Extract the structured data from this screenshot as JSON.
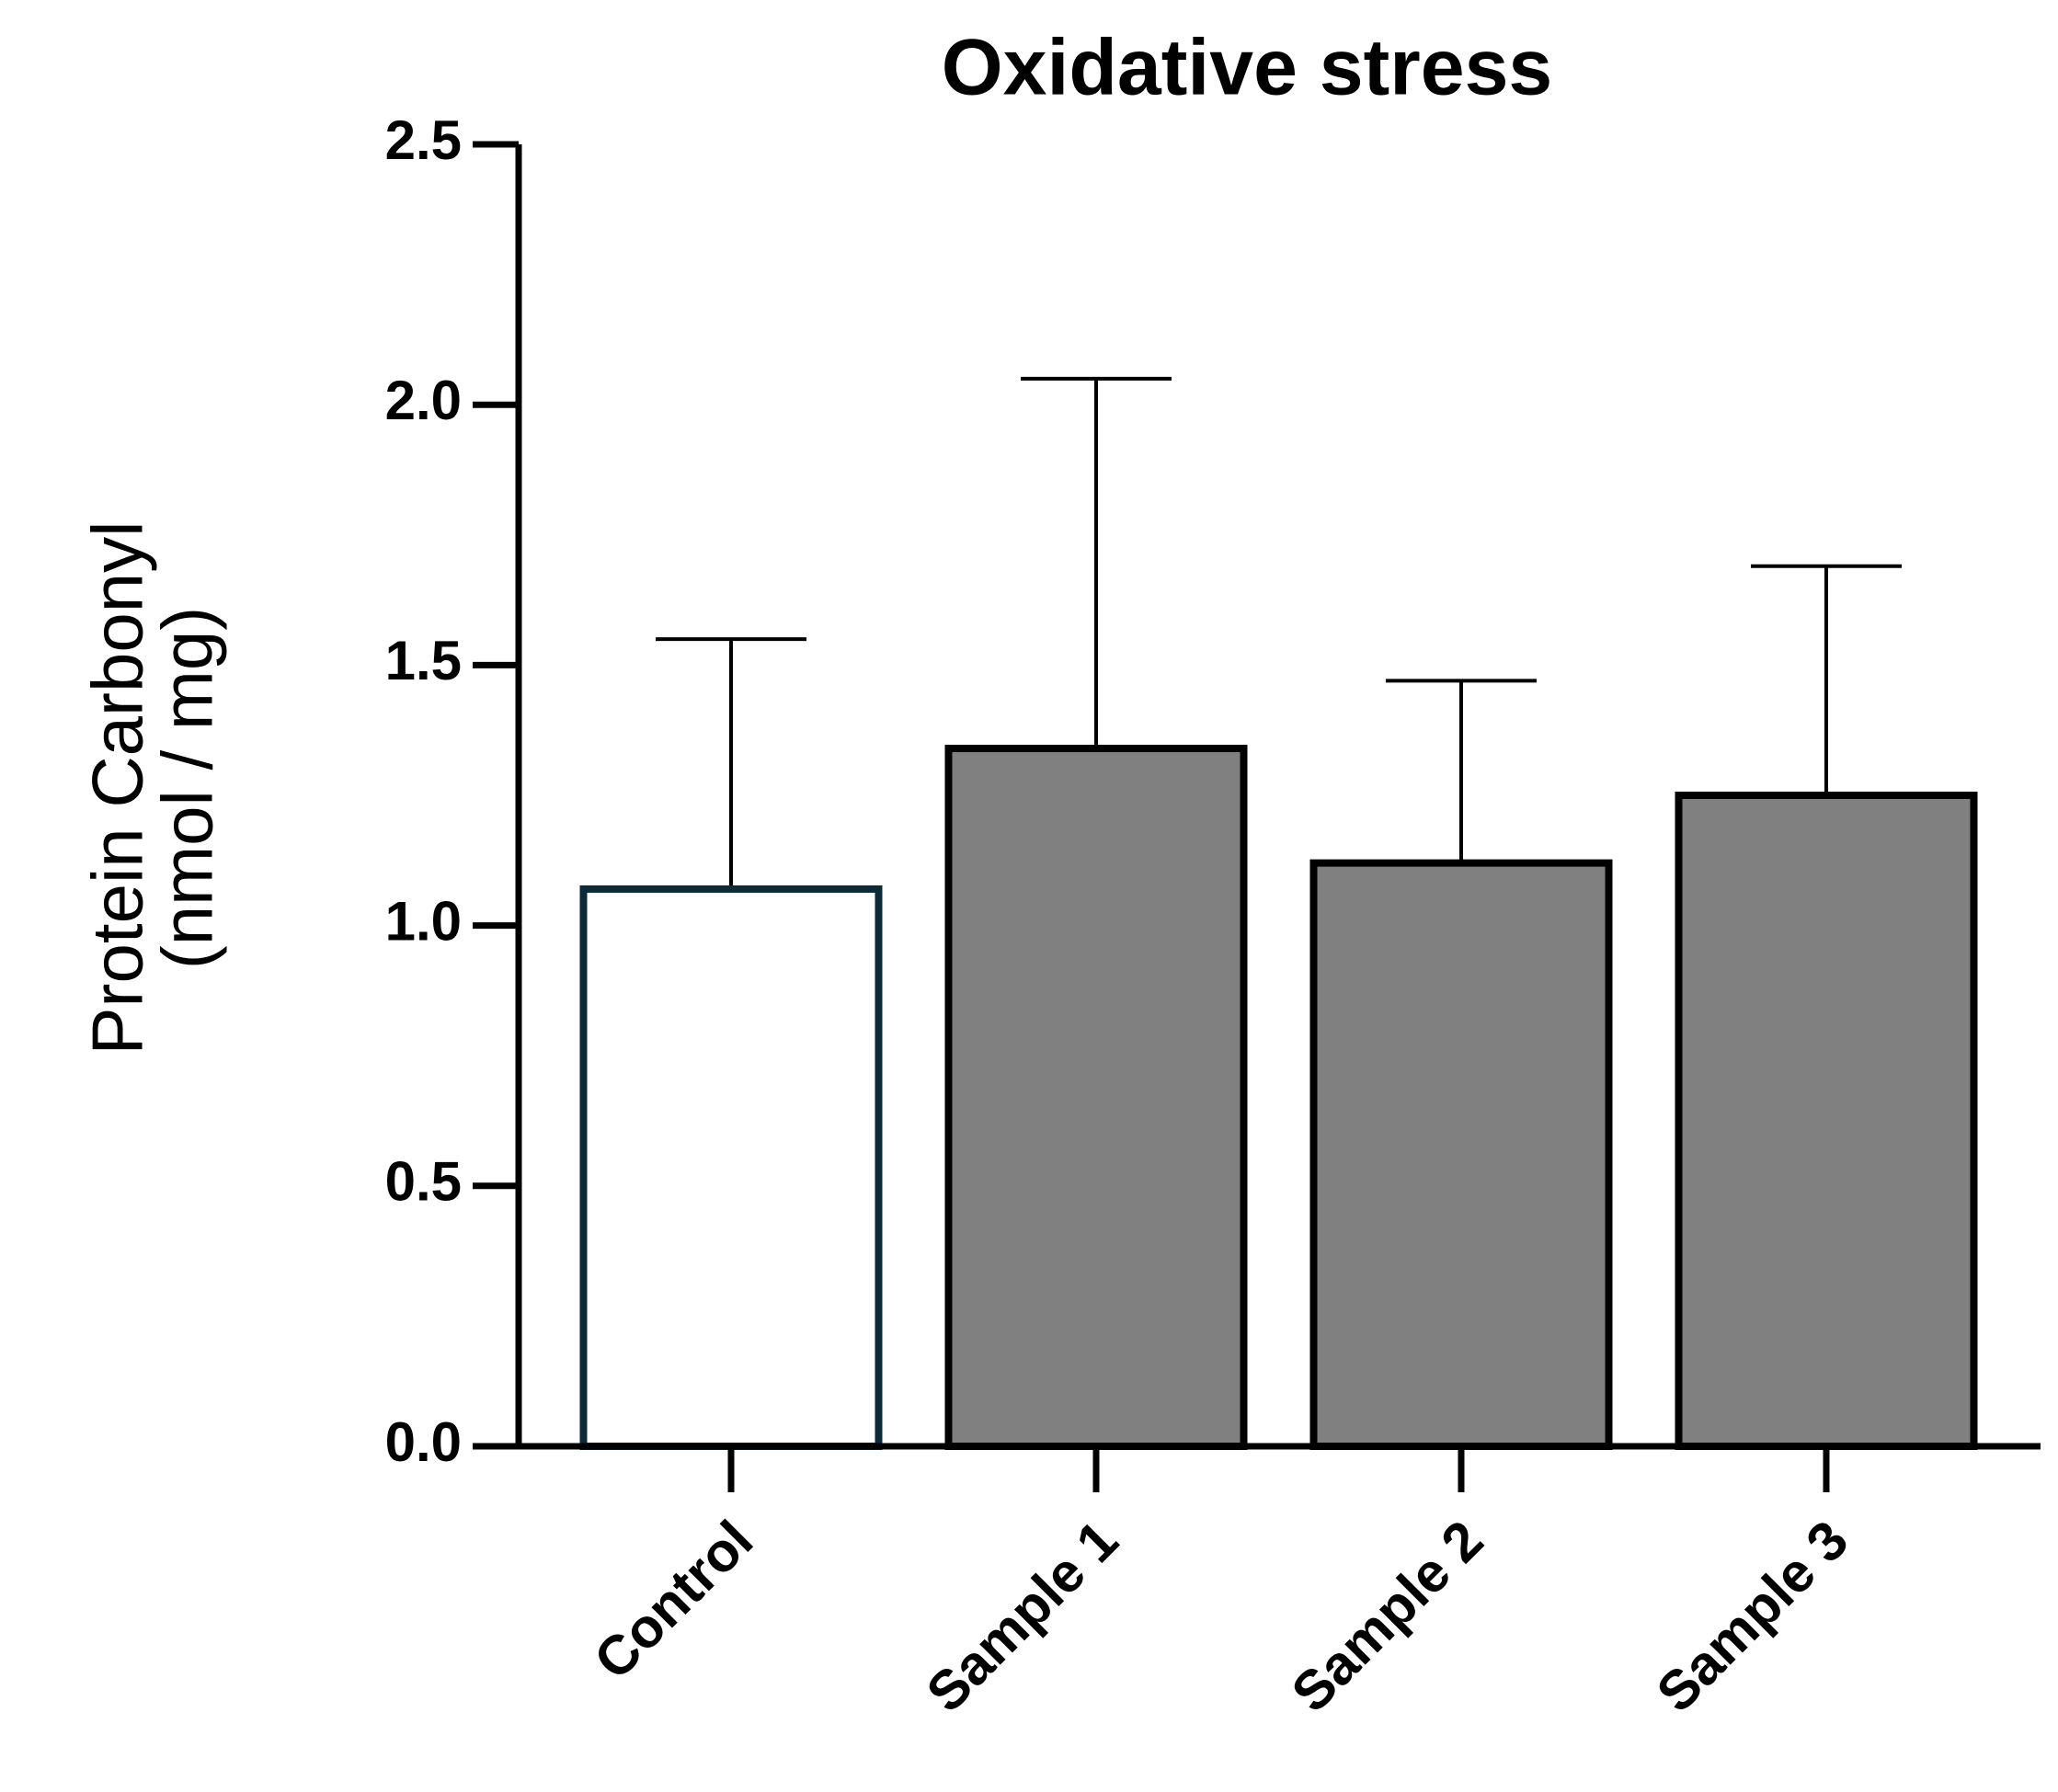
{
  "chart_data": {
    "type": "bar",
    "title": "Oxidative stress",
    "ylabel": [
      "Protein Carbonyl",
      "(nmol / mg)"
    ],
    "categories": [
      "Control",
      "Sample 1",
      "Sample 2",
      "Sample 3"
    ],
    "values": [
      1.07,
      1.34,
      1.12,
      1.25
    ],
    "errors": [
      0.48,
      0.71,
      0.35,
      0.44
    ],
    "colors": [
      "#ffffff",
      "#808080",
      "#808080",
      "#808080"
    ],
    "edgecolors": [
      "#0d2a38",
      "#000000",
      "#000000",
      "#000000"
    ],
    "ylim": [
      0,
      2.5
    ],
    "yticks": [
      {
        "value": 0,
        "label": "0.0"
      },
      0.5,
      {
        "value": 1,
        "label": "1.0"
      },
      1.5,
      {
        "value": 2,
        "label": "2.0"
      },
      2.5
    ],
    "grid": false
  }
}
